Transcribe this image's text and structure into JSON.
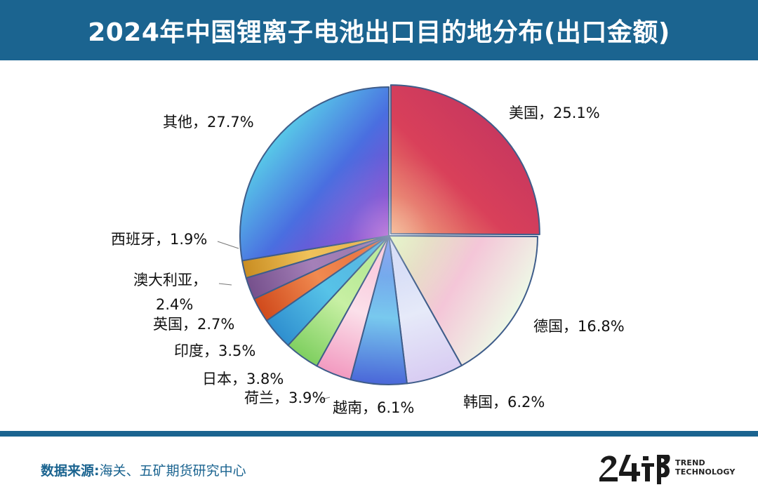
{
  "header": {
    "title": "2024年中国锂离子电池出口目的地分布(出口金额)"
  },
  "chart_data": {
    "type": "pie",
    "title": "2024年中国锂离子电池出口目的地分布(出口金额)",
    "unit": "%",
    "slices": [
      {
        "name": "美国",
        "value": 25.1,
        "label": "美国，25.1%"
      },
      {
        "name": "德国",
        "value": 16.8,
        "label": "德国，16.8%"
      },
      {
        "name": "韩国",
        "value": 6.2,
        "label": "韩国，6.2%"
      },
      {
        "name": "越南",
        "value": 6.1,
        "label": "越南，6.1%"
      },
      {
        "name": "荷兰",
        "value": 3.9,
        "label": "荷兰，3.9%"
      },
      {
        "name": "日本",
        "value": 3.8,
        "label": "日本，3.8%"
      },
      {
        "name": "印度",
        "value": 3.5,
        "label": "印度，3.5%"
      },
      {
        "name": "英国",
        "value": 2.7,
        "label": "英国，2.7%"
      },
      {
        "name": "澳大利亚",
        "value": 2.4,
        "label": "澳大利亚，",
        "label2": "2.4%"
      },
      {
        "name": "西班牙",
        "value": 1.9,
        "label": "西班牙，1.9%"
      },
      {
        "name": "其他",
        "value": 27.7,
        "label": "其他，27.7%"
      }
    ],
    "start_angle_deg": 0,
    "direction": "clockwise"
  },
  "colors": {
    "header_bg": "#1b6490",
    "source_text": "#1b6490",
    "slices": {
      "美国": [
        "#f0a070",
        "#d9405a",
        "#c9385e"
      ],
      "德国": [
        "#d8f0b0",
        "#f4c6d8",
        "#eef8e6"
      ],
      "韩国": [
        "#c7d0f4",
        "#e6eaf9",
        "#d8ccf2"
      ],
      "越南": [
        "#5b7ee8",
        "#78c9ee",
        "#4a66d8"
      ],
      "荷兰": [
        "#f7b6d0",
        "#fbe0ea",
        "#f29ac0"
      ],
      "日本": [
        "#9fe07a",
        "#c8f0a4",
        "#7fcf60"
      ],
      "印度": [
        "#3aa3d9",
        "#57c3e8",
        "#2f8fcf"
      ],
      "英国": [
        "#e2521e",
        "#f08a50",
        "#d04a1c"
      ],
      "澳大利亚": [
        "#8a63a0",
        "#a480b8",
        "#76508c"
      ],
      "西班牙": [
        "#e0a332",
        "#f0c25a",
        "#c98d22"
      ],
      "其他": [
        "#9b3cc9",
        "#4a6ee0",
        "#58c8e8"
      ]
    }
  },
  "footer": {
    "source_label": "数据来源:",
    "source_text": "海关、五矿期货研究中心",
    "logo": {
      "mark_icon": "brand-logo-24",
      "line1": "TREND",
      "line2": "TECHNOLOGY"
    }
  }
}
